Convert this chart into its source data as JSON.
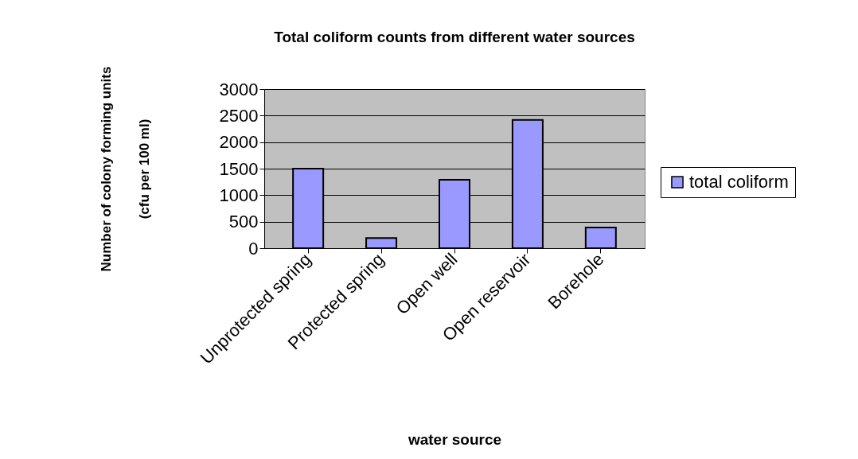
{
  "chart_data": {
    "type": "bar",
    "title": "Total coliform counts from different water sources",
    "xlabel": "water source",
    "ylabel": "Number of colony forming units\n(cfu per 100 ml)",
    "categories": [
      "Unprotected spring",
      "Protected spring",
      "Open well",
      "Open reservoir",
      "Borehole"
    ],
    "series": [
      {
        "name": "total coliform",
        "color": "#9999ff",
        "values": [
          1500,
          190,
          1290,
          2420,
          390
        ]
      }
    ],
    "ylim": [
      0,
      3000
    ],
    "yticks": [
      0,
      500,
      1000,
      1500,
      2000,
      2500,
      3000
    ],
    "grid": "y",
    "legend": "right"
  }
}
